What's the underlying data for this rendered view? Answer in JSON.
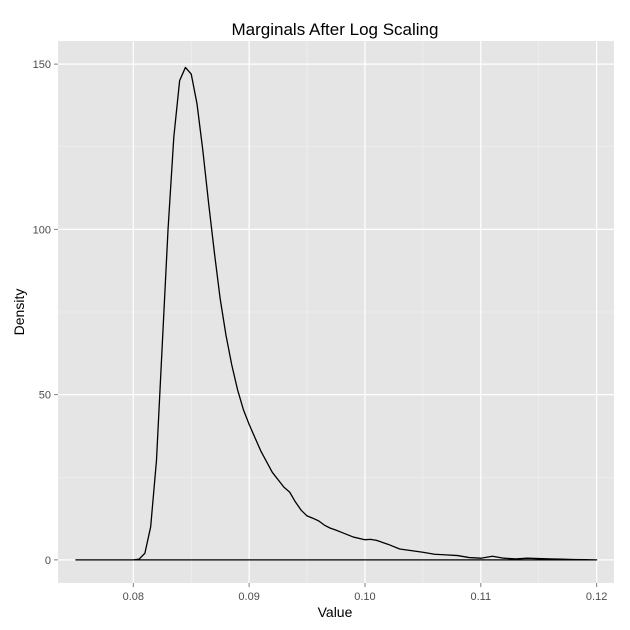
{
  "chart_data": {
    "type": "line",
    "title": "Marginals After Log Scaling",
    "xlabel": "Value",
    "ylabel": "Density",
    "xlim": [
      0.0735,
      0.1215
    ],
    "ylim": [
      -7,
      157
    ],
    "x_ticks": [
      {
        "value": 0.08,
        "label": "0.08"
      },
      {
        "value": 0.09,
        "label": "0.09"
      },
      {
        "value": 0.1,
        "label": "0.10"
      },
      {
        "value": 0.11,
        "label": "0.11"
      },
      {
        "value": 0.12,
        "label": "0.12"
      }
    ],
    "y_ticks": [
      {
        "value": 0,
        "label": "0"
      },
      {
        "value": 50,
        "label": "50"
      },
      {
        "value": 100,
        "label": "100"
      },
      {
        "value": 150,
        "label": "150"
      }
    ],
    "grid": true,
    "series": [
      {
        "color": "#000000",
        "x": [
          0.075,
          0.08,
          0.0805,
          0.081,
          0.0815,
          0.082,
          0.0825,
          0.083,
          0.0835,
          0.084,
          0.0845,
          0.085,
          0.0855,
          0.086,
          0.0865,
          0.087,
          0.0875,
          0.088,
          0.0885,
          0.089,
          0.0895,
          0.09,
          0.091,
          0.092,
          0.093,
          0.0935,
          0.094,
          0.0945,
          0.095,
          0.0955,
          0.096,
          0.0965,
          0.097,
          0.0975,
          0.098,
          0.099,
          0.1,
          0.1005,
          0.101,
          0.102,
          0.103,
          0.104,
          0.105,
          0.106,
          0.107,
          0.108,
          0.109,
          0.11,
          0.111,
          0.112,
          0.113,
          0.114,
          0.115,
          0.116,
          0.117,
          0.118,
          0.119,
          0.12,
          0.12,
          0.075
        ],
        "y": [
          0.0,
          0.0,
          0.2,
          2.0,
          10.0,
          30.0,
          65.0,
          100.0,
          128.0,
          145.0,
          149.0,
          147.0,
          138.0,
          124.0,
          108.0,
          93.0,
          79.0,
          68.0,
          59.0,
          51.5,
          45.5,
          41.0,
          33.0,
          26.5,
          22.0,
          20.5,
          17.5,
          15.0,
          13.3,
          12.6,
          11.8,
          10.5,
          9.6,
          9.0,
          8.3,
          6.9,
          6.1,
          6.2,
          5.9,
          4.7,
          3.3,
          2.8,
          2.3,
          1.7,
          1.5,
          1.3,
          0.7,
          0.5,
          1.1,
          0.5,
          0.3,
          0.5,
          0.4,
          0.3,
          0.2,
          0.1,
          0.05,
          0.0,
          0.0,
          0.0
        ]
      }
    ]
  }
}
